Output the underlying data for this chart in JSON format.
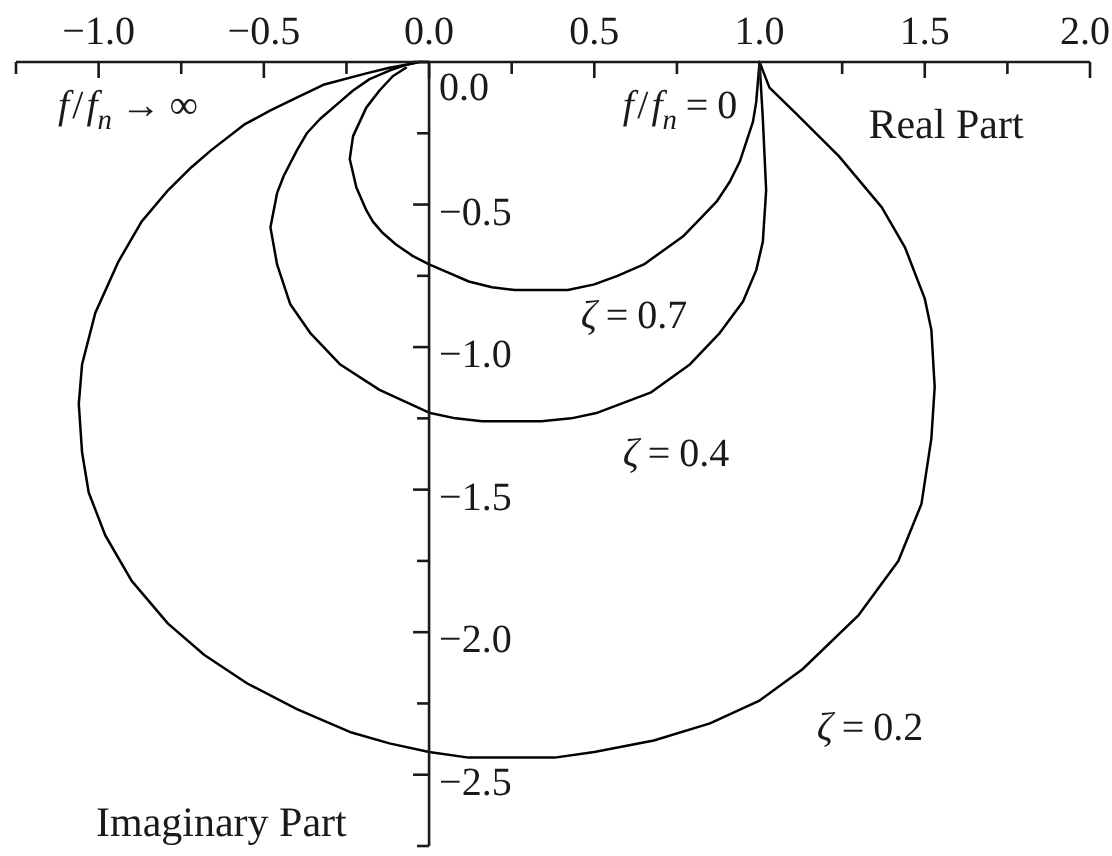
{
  "chart_data": {
    "type": "line",
    "xlabel": "Real Part",
    "ylabel": "Imaginary Part",
    "annotations": [
      "f/f$_{n}$→∞",
      "f/f$_{n}$=0"
    ],
    "xlim": [
      -1.25,
      2.0
    ],
    "ylim": [
      -2.75,
      0
    ],
    "xticks": [
      {
        "value": -1.25,
        "label": null
      },
      {
        "value": -1,
        "label": "−1.0"
      },
      {
        "value": -0.75,
        "label": null
      },
      {
        "value": -0.5,
        "label": "−0.5"
      },
      {
        "value": -0.25,
        "label": null
      },
      {
        "value": 0,
        "label": "0.0"
      },
      {
        "value": 0.25,
        "label": null
      },
      0.5,
      {
        "value": 0.75,
        "label": null
      },
      {
        "value": 1,
        "label": "1.0"
      },
      {
        "value": 1.25,
        "label": null
      },
      1.5,
      {
        "value": 1.75,
        "label": null
      },
      {
        "value": 2,
        "label": "2.0"
      }
    ],
    "yticks": [
      {
        "value": 0,
        "label": "0.0"
      },
      {
        "value": -0.25,
        "label": null
      },
      {
        "value": -0.5,
        "label": "−0.5"
      },
      {
        "value": -0.75,
        "label": null
      },
      {
        "value": -1,
        "label": "−1.0"
      },
      {
        "value": -1.25,
        "label": null
      },
      {
        "value": -1.5,
        "label": "−1.5"
      },
      {
        "value": -1.75,
        "label": null
      },
      {
        "value": -2,
        "label": "−2.0"
      },
      {
        "value": -2.25,
        "label": null
      },
      {
        "value": -2.5,
        "label": "−2.5"
      },
      {
        "value": -2.75,
        "label": null
      }
    ],
    "line_style": "solid",
    "series": [
      {
        "name": "ζ=0.7",
        "color": "#000000",
        "x": [
          1,
          0.99,
          0.98,
          0.96,
          0.94,
          0.91,
          0.87,
          0.82,
          0.77,
          0.71,
          0.65,
          0.57,
          0.5,
          0.42,
          0.34,
          0.26,
          0.19,
          0.12,
          0.06,
          0,
          -0.05,
          -0.1,
          -0.14,
          -0.17,
          -0.19,
          -0.22,
          -0.24,
          -0.23,
          -0.21,
          -0.19,
          -0.15,
          -0.11,
          -0.07
        ],
        "values": [
          0,
          -0.14,
          -0.21,
          -0.28,
          -0.35,
          -0.42,
          -0.49,
          -0.55,
          -0.61,
          -0.66,
          -0.71,
          -0.75,
          -0.78,
          -0.8,
          -0.8,
          -0.8,
          -0.79,
          -0.77,
          -0.74,
          -0.71,
          -0.68,
          -0.64,
          -0.6,
          -0.56,
          -0.52,
          -0.44,
          -0.34,
          -0.26,
          -0.21,
          -0.16,
          -0.1,
          -0.05,
          -0.02
        ]
      },
      {
        "name": "ζ=0.4",
        "color": "#000000",
        "x": [
          1,
          1.01,
          1.02,
          1.01,
          0.99,
          0.95,
          0.88,
          0.79,
          0.67,
          0.51,
          0.43,
          0.34,
          0.25,
          0.16,
          0.08,
          0,
          -0.15,
          -0.27,
          -0.36,
          -0.42,
          -0.46,
          -0.48,
          -0.46,
          -0.44,
          -0.4,
          -0.37,
          -0.33,
          -0.27,
          -0.23,
          -0.18,
          -0.12,
          -0.07,
          -0.03
        ],
        "values": [
          0,
          -0.2,
          -0.45,
          -0.63,
          -0.73,
          -0.84,
          -0.95,
          -1.06,
          -1.16,
          -1.23,
          -1.25,
          -1.26,
          -1.26,
          -1.26,
          -1.25,
          -1.23,
          -1.15,
          -1.06,
          -0.95,
          -0.85,
          -0.71,
          -0.58,
          -0.46,
          -0.4,
          -0.31,
          -0.25,
          -0.2,
          -0.14,
          -0.1,
          -0.06,
          -0.03,
          -0.01,
          0
        ]
      },
      {
        "name": "ζ=0.2",
        "color": "#000000",
        "x": [
          1,
          1.03,
          1.11,
          1.24,
          1.37,
          1.44,
          1.5,
          1.52,
          1.53,
          1.52,
          1.49,
          1.42,
          1.3,
          1.13,
          1,
          0.85,
          0.68,
          0.5,
          0.38,
          0.25,
          0.12,
          0,
          -0.12,
          -0.24,
          -0.4,
          -0.55,
          -0.68,
          -0.79,
          -0.9,
          -0.98,
          -1.03,
          -1.05,
          -1.06,
          -1.05,
          -1.01,
          -0.94,
          -0.87,
          -0.79,
          -0.72,
          -0.66,
          -0.56,
          -0.48,
          -0.41,
          -0.32,
          -0.19,
          -0.12,
          -0.07,
          -0.03,
          0
        ],
        "values": [
          0,
          -0.09,
          -0.18,
          -0.33,
          -0.51,
          -0.65,
          -0.83,
          -0.94,
          -1.14,
          -1.32,
          -1.55,
          -1.75,
          -1.94,
          -2.13,
          -2.24,
          -2.32,
          -2.38,
          -2.42,
          -2.44,
          -2.44,
          -2.44,
          -2.42,
          -2.39,
          -2.35,
          -2.27,
          -2.18,
          -2.08,
          -1.97,
          -1.82,
          -1.66,
          -1.51,
          -1.37,
          -1.2,
          -1.06,
          -0.88,
          -0.7,
          -0.56,
          -0.45,
          -0.37,
          -0.31,
          -0.22,
          -0.17,
          -0.13,
          -0.08,
          -0.04,
          -0.02,
          -0.01,
          0,
          0
        ]
      }
    ]
  }
}
